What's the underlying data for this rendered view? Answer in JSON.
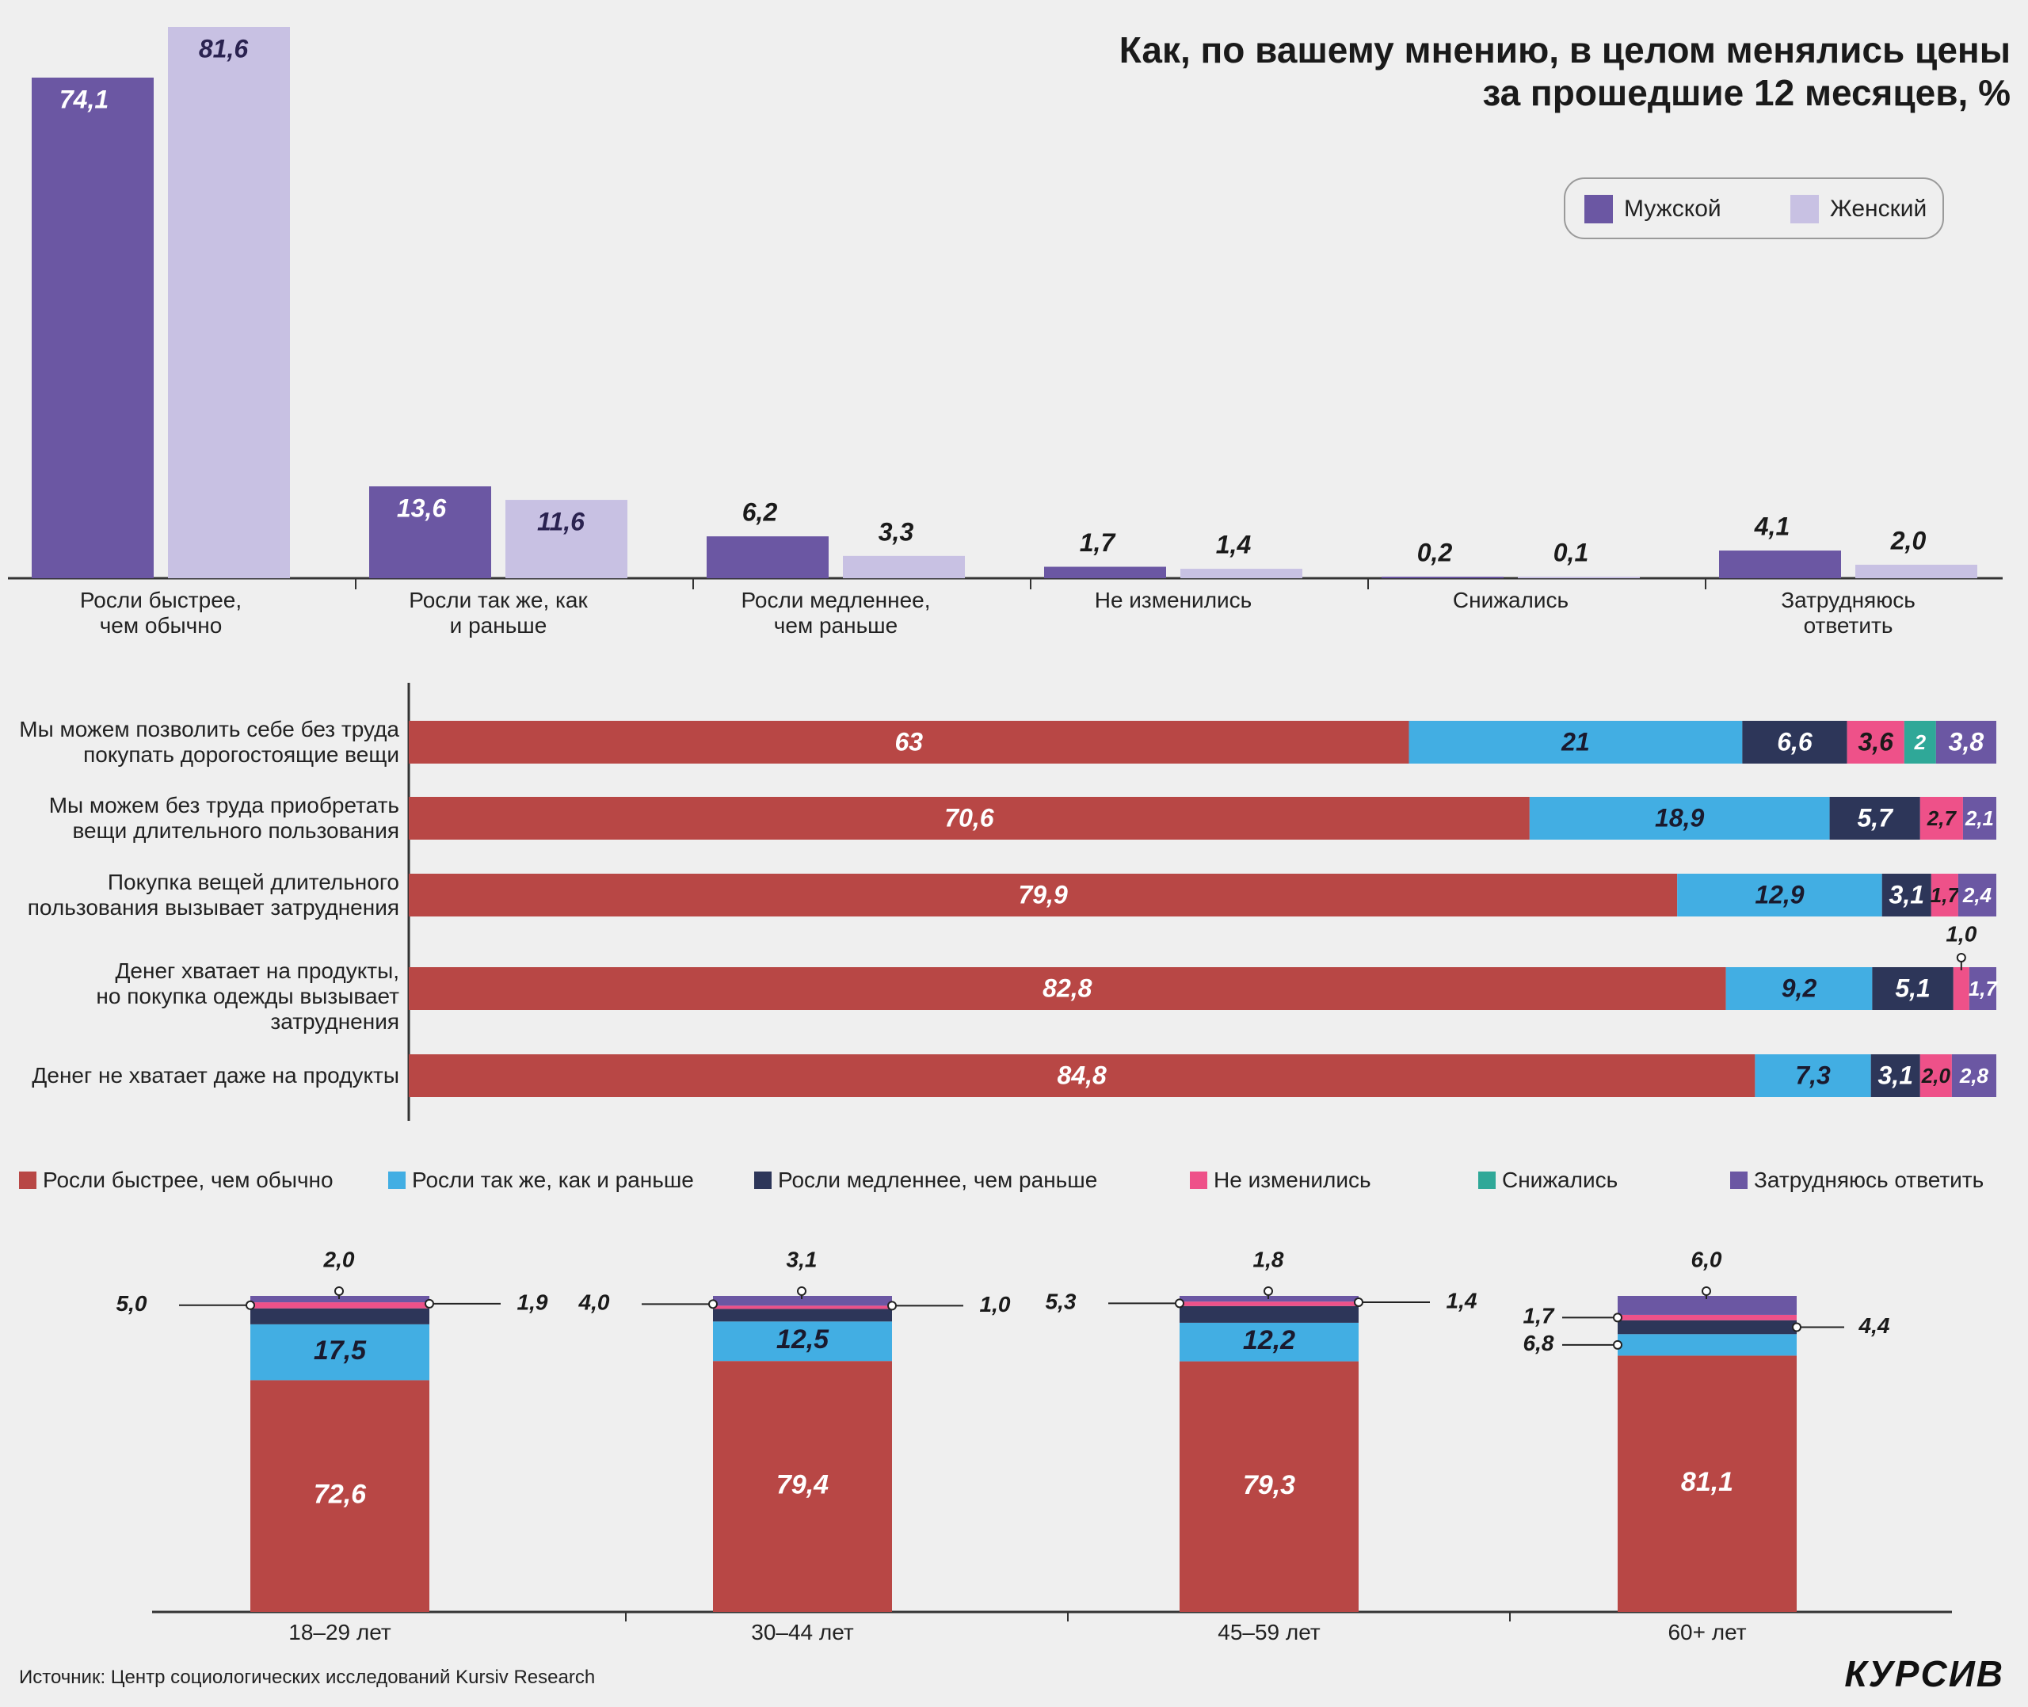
{
  "title_line1": "Как, по вашему мнению, в целом менялись цены",
  "title_line2": "за прошедшие 12 месяцев, %",
  "colors": {
    "male": "#6b57a3",
    "female": "#c8c1e3",
    "faster": "#b84745",
    "same": "#42aee3",
    "slower": "#2d3659",
    "unchanged": "#ee5189",
    "decreased": "#2fa898",
    "hard": "#6b57a3"
  },
  "source": "Источник: Центр социологических исследований Kursiv Research",
  "logo": "КУРСИВ",
  "chart_data": [
    {
      "type": "bar",
      "title": "Как, по вашему мнению, в целом менялись цены за прошедшие 12 месяцев, %",
      "categories": [
        "Росли быстрее,\nчем обычно",
        "Росли так же, как\nи раньше",
        "Росли медленнее,\nчем раньше",
        "Не изменились",
        "Снижались",
        "Затрудняюсь\nответить"
      ],
      "series": [
        {
          "name": "Мужской",
          "labels": [
            "74,1",
            "13,6",
            "6,2",
            "1,7",
            "0,2",
            "4,1"
          ],
          "values": [
            74.1,
            13.6,
            6.2,
            1.7,
            0.2,
            4.1
          ]
        },
        {
          "name": "Женский",
          "labels": [
            "81,6",
            "11,6",
            "3,3",
            "1,4",
            "0,1",
            "2,0"
          ],
          "values": [
            81.6,
            11.6,
            3.3,
            1.4,
            0.1,
            2.0
          ]
        }
      ],
      "legend": "top-right",
      "ylim": [
        0,
        81.6
      ]
    },
    {
      "type": "bar",
      "orientation": "horizontal",
      "stacked": true,
      "categories": [
        "Мы можем позволить себе без труда\nпокупать дорогостоящие вещи",
        "Мы можем без труда приобретать\nвещи длительного пользования",
        "Покупка вещей длительного\nпользования вызывает затруднения",
        "Денег хватает на продукты,\nно покупка одежды вызывает\nзатруднения",
        "Денег не хватает даже на продукты"
      ],
      "series": [
        {
          "name": "Росли быстрее, чем обычно",
          "labels": [
            "63",
            "70,6",
            "79,9",
            "82,8",
            "84,8"
          ],
          "values": [
            63,
            70.6,
            79.9,
            82.8,
            84.8
          ]
        },
        {
          "name": "Росли так же, как и раньше",
          "labels": [
            "21",
            "18,9",
            "12,9",
            "9,2",
            "7,3"
          ],
          "values": [
            21,
            18.9,
            12.9,
            9.2,
            7.3
          ]
        },
        {
          "name": "Росли медленнее, чем раньше",
          "labels": [
            "6,6",
            "5,7",
            "3,1",
            "5,1",
            "3,1"
          ],
          "values": [
            6.6,
            5.7,
            3.1,
            5.1,
            3.1
          ]
        },
        {
          "name": "Не изменились",
          "labels": [
            "3,6",
            "2,7",
            "1,7",
            "1,0",
            "2,0"
          ],
          "values": [
            3.6,
            2.7,
            1.7,
            1.0,
            2.0
          ]
        },
        {
          "name": "Снижались",
          "labels": [
            "2",
            "",
            "",
            "",
            ""
          ],
          "values": [
            2,
            0,
            0,
            0,
            0
          ]
        },
        {
          "name": "Затрудняюсь ответить",
          "labels": [
            "3,8",
            "2,1",
            "2,4",
            "1,7",
            "2,8"
          ],
          "values": [
            3.8,
            2.1,
            2.4,
            1.7,
            2.8
          ]
        }
      ],
      "legend": "bottom"
    },
    {
      "type": "bar",
      "stacked": true,
      "categories": [
        "18–29 лет",
        "30–44 лет",
        "45–59 лет",
        "60+ лет"
      ],
      "series": [
        {
          "name": "Росли быстрее, чем обычно",
          "labels": [
            "72,6",
            "79,4",
            "79,3",
            "81,1"
          ],
          "values": [
            72.6,
            79.4,
            79.3,
            81.1
          ]
        },
        {
          "name": "Росли так же, как и раньше",
          "labels": [
            "17,5",
            "12,5",
            "12,2",
            "6,8"
          ],
          "values": [
            17.5,
            12.5,
            12.2,
            6.8
          ]
        },
        {
          "name": "Росли медленнее, чем раньше",
          "labels": [
            "5,0",
            "4,0",
            "5,3",
            "4,4"
          ],
          "values": [
            5.0,
            4.0,
            5.3,
            4.4
          ]
        },
        {
          "name": "Не изменились",
          "labels": [
            "1,9",
            "1,0",
            "1,4",
            "1,7"
          ],
          "values": [
            1.9,
            1.0,
            1.4,
            1.7
          ]
        },
        {
          "name": "Затрудняюсь ответить",
          "labels": [
            "2,0",
            "3,1",
            "1,8",
            "6,0"
          ],
          "values": [
            2.0,
            3.1,
            1.8,
            6.0
          ]
        }
      ]
    }
  ]
}
